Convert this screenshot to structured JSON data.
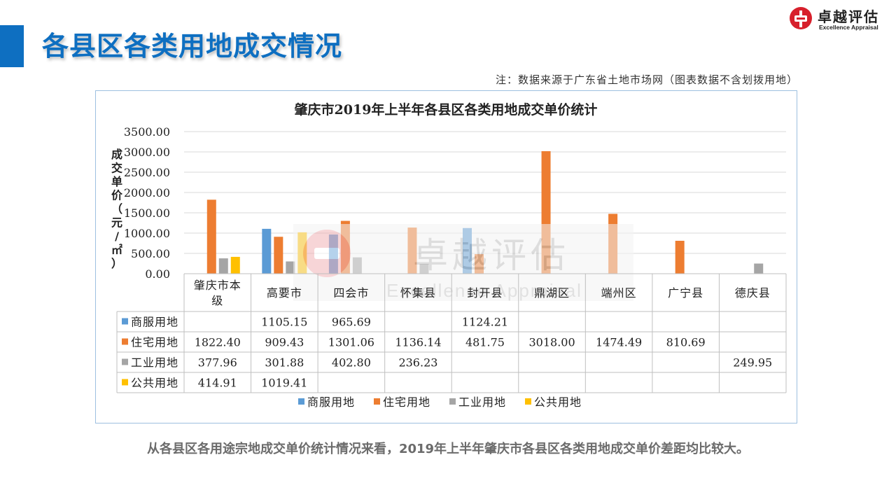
{
  "page": {
    "title": "各县区各类用地成交情况",
    "note": "注：数据来源于广东省土地市场网（图表数据不含划拨用地）",
    "caption": "从各县区各用途宗地成交单价统计情况来看，2019年上半年肇庆市各县区各类用地成交单价差距均比较大。"
  },
  "logo": {
    "name_cn": "卓越评估",
    "name_en": "Excellence Appraisal",
    "mark_color": "#d7202c",
    "icon": "company-logo-icon"
  },
  "watermark": {
    "cn": "卓越评估",
    "en": "Excellence Appraisal"
  },
  "colors": {
    "title": "#0e6fc1",
    "series": [
      "#5b9bd5",
      "#ed7d31",
      "#a5a5a5",
      "#ffc000"
    ]
  },
  "chart_data": {
    "type": "bar",
    "title": "肇庆市2019年上半年各县区各类用地成交单价统计",
    "ylabel": "成交单价（元/㎡）",
    "xlabel": "",
    "ylim": [
      0,
      3500
    ],
    "yticks": [
      "0.00",
      "500.00",
      "1000.00",
      "1500.00",
      "2000.00",
      "2500.00",
      "3000.00",
      "3500.00"
    ],
    "grid": true,
    "legend_position": "bottom",
    "categories": [
      "肇庆市本级",
      "高要市",
      "四会市",
      "怀集县",
      "封开县",
      "鼎湖区",
      "端州区",
      "广宁县",
      "德庆县"
    ],
    "series": [
      {
        "name": "商服用地",
        "color": "#5b9bd5",
        "values": [
          null,
          1105.15,
          965.69,
          null,
          1124.21,
          null,
          null,
          null,
          null
        ],
        "labels": [
          "",
          "1105.15",
          "965.69",
          "",
          "1124.21",
          "",
          "",
          "",
          ""
        ]
      },
      {
        "name": "住宅用地",
        "color": "#ed7d31",
        "values": [
          1822.4,
          909.43,
          1301.06,
          1136.14,
          481.75,
          3018.0,
          1474.49,
          810.69,
          null
        ],
        "labels": [
          "1822.40",
          "909.43",
          "1301.06",
          "1136.14",
          "481.75",
          "3018.00",
          "1474.49",
          "810.69",
          ""
        ]
      },
      {
        "name": "工业用地",
        "color": "#a5a5a5",
        "values": [
          377.96,
          301.88,
          402.8,
          236.23,
          null,
          null,
          null,
          null,
          249.95
        ],
        "labels": [
          "377.96",
          "301.88",
          "402.80",
          "236.23",
          "",
          "",
          "",
          "",
          "249.95"
        ]
      },
      {
        "name": "公共用地",
        "color": "#ffc000",
        "values": [
          414.91,
          1019.41,
          null,
          null,
          null,
          null,
          null,
          null,
          null
        ],
        "labels": [
          "414.91",
          "1019.41",
          "",
          "",
          "",
          "",
          "",
          "",
          ""
        ]
      }
    ]
  }
}
